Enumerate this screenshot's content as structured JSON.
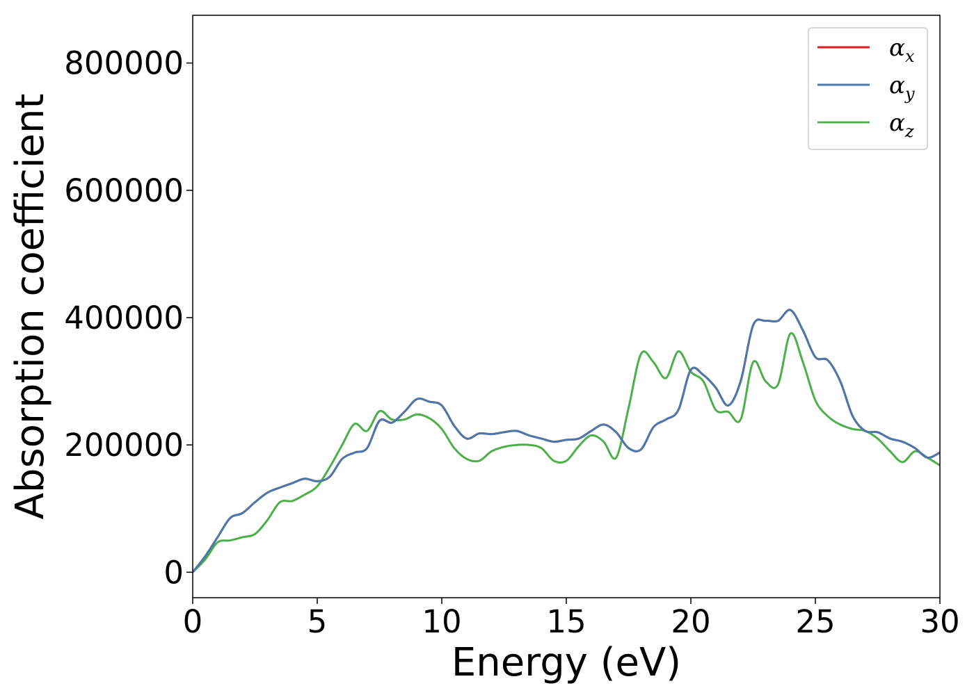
{
  "chart_data": {
    "type": "line",
    "title": "",
    "xlabel": "Energy (eV)",
    "ylabel": "Absorption coefficient",
    "xlim": [
      0,
      30
    ],
    "ylim": [
      -40000,
      875000
    ],
    "xticks": [
      0,
      5,
      10,
      15,
      20,
      25,
      30
    ],
    "yticks": [
      0,
      200000,
      400000,
      600000,
      800000
    ],
    "xtick_labels": [
      "0",
      "5",
      "10",
      "15",
      "20",
      "25",
      "30"
    ],
    "ytick_labels": [
      "0",
      "200000",
      "400000",
      "600000",
      "800000"
    ],
    "grid": false,
    "legend_position": "top-right",
    "series": [
      {
        "name": "α",
        "subscript": "x",
        "color": "#e41a1c",
        "x": [
          0,
          0.5,
          1,
          1.5,
          2,
          2.5,
          3,
          3.5,
          4,
          4.5,
          5,
          5.5,
          6,
          6.5,
          7,
          7.5,
          8,
          8.5,
          9,
          9.5,
          10,
          10.5,
          11,
          11.5,
          12,
          12.5,
          13,
          13.5,
          14,
          14.5,
          15,
          15.5,
          16,
          16.5,
          17,
          17.5,
          18,
          18.5,
          19,
          19.5,
          20,
          20.5,
          21,
          21.5,
          22,
          22.5,
          23,
          23.5,
          24,
          24.5,
          25,
          25.5,
          26,
          26.5,
          27,
          27.5,
          28,
          28.5,
          29,
          29.5,
          30
        ],
        "y": [
          0,
          25000,
          55000,
          85000,
          93000,
          110000,
          125000,
          133000,
          140000,
          147000,
          143000,
          150000,
          178000,
          188000,
          195000,
          238000,
          235000,
          252000,
          272000,
          268000,
          262000,
          230000,
          210000,
          218000,
          217000,
          220000,
          222000,
          215000,
          210000,
          205000,
          208000,
          210000,
          222000,
          232000,
          220000,
          195000,
          193000,
          228000,
          240000,
          255000,
          318000,
          310000,
          290000,
          262000,
          300000,
          388000,
          395000,
          395000,
          412000,
          380000,
          338000,
          333000,
          300000,
          245000,
          222000,
          220000,
          210000,
          205000,
          195000,
          180000,
          188000
        ]
      },
      {
        "name": "α",
        "subscript": "y",
        "color": "#4a78ab",
        "x": [
          0,
          0.5,
          1,
          1.5,
          2,
          2.5,
          3,
          3.5,
          4,
          4.5,
          5,
          5.5,
          6,
          6.5,
          7,
          7.5,
          8,
          8.5,
          9,
          9.5,
          10,
          10.5,
          11,
          11.5,
          12,
          12.5,
          13,
          13.5,
          14,
          14.5,
          15,
          15.5,
          16,
          16.5,
          17,
          17.5,
          18,
          18.5,
          19,
          19.5,
          20,
          20.5,
          21,
          21.5,
          22,
          22.5,
          23,
          23.5,
          24,
          24.5,
          25,
          25.5,
          26,
          26.5,
          27,
          27.5,
          28,
          28.5,
          29,
          29.5,
          30
        ],
        "y": [
          0,
          25000,
          55000,
          85000,
          93000,
          110000,
          125000,
          133000,
          140000,
          147000,
          143000,
          150000,
          178000,
          188000,
          195000,
          238000,
          235000,
          252000,
          272000,
          268000,
          262000,
          230000,
          210000,
          218000,
          217000,
          220000,
          222000,
          215000,
          210000,
          205000,
          208000,
          210000,
          222000,
          232000,
          220000,
          195000,
          193000,
          228000,
          240000,
          255000,
          318000,
          310000,
          290000,
          262000,
          300000,
          388000,
          395000,
          395000,
          412000,
          380000,
          338000,
          333000,
          300000,
          245000,
          222000,
          220000,
          210000,
          205000,
          195000,
          180000,
          188000
        ]
      },
      {
        "name": "α",
        "subscript": "z",
        "color": "#4daf4a",
        "x": [
          0,
          0.5,
          1,
          1.5,
          2,
          2.5,
          3,
          3.5,
          4,
          4.5,
          5,
          5.5,
          6,
          6.5,
          7,
          7.5,
          8,
          8.5,
          9,
          9.5,
          10,
          10.5,
          11,
          11.5,
          12,
          12.5,
          13,
          13.5,
          14,
          14.5,
          15,
          15.5,
          16,
          16.5,
          17,
          17.5,
          18,
          18.5,
          19,
          19.5,
          20,
          20.5,
          21,
          21.5,
          22,
          22.5,
          23,
          23.5,
          24,
          24.5,
          25,
          25.5,
          26,
          26.5,
          27,
          27.5,
          28,
          28.5,
          29,
          29.5,
          30
        ],
        "y": [
          0,
          20000,
          47000,
          50000,
          55000,
          60000,
          82000,
          110000,
          112000,
          122000,
          135000,
          165000,
          200000,
          233000,
          222000,
          253000,
          240000,
          240000,
          248000,
          242000,
          225000,
          195000,
          178000,
          175000,
          190000,
          197000,
          200000,
          200000,
          195000,
          175000,
          175000,
          198000,
          215000,
          205000,
          180000,
          258000,
          343000,
          330000,
          305000,
          347000,
          315000,
          300000,
          255000,
          252000,
          240000,
          330000,
          300000,
          295000,
          375000,
          330000,
          270000,
          245000,
          232000,
          225000,
          222000,
          210000,
          190000,
          173000,
          190000,
          180000,
          168000
        ]
      }
    ]
  }
}
